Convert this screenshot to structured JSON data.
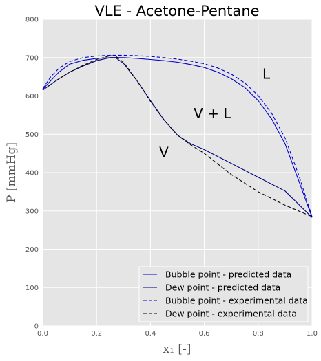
{
  "chart_data": {
    "type": "line",
    "title": "VLE - Acetone-Pentane",
    "xlabel": "x₁ [-]",
    "ylabel": "P [mmHg]",
    "xlim": [
      0,
      1
    ],
    "ylim": [
      0,
      800
    ],
    "xticks": [
      "0.0",
      "0.2",
      "0.4",
      "0.6",
      "0.8",
      "1.0"
    ],
    "yticks": [
      "0",
      "100",
      "200",
      "300",
      "400",
      "500",
      "600",
      "700",
      "800"
    ],
    "grid": true,
    "legend_position": "lower-right",
    "colors": {
      "background": "#e5e5e5",
      "grid": "#ffffff",
      "blue": "#0000cc",
      "black": "#000000"
    },
    "annotations": [
      {
        "text": "L",
        "x": 0.83,
        "y": 645
      },
      {
        "text": "V + L",
        "x": 0.63,
        "y": 542
      },
      {
        "text": "V",
        "x": 0.45,
        "y": 440
      }
    ],
    "series": [
      {
        "name": "Bubble point - predicted data",
        "color": "#0000cc",
        "dash": "solid",
        "x": [
          0.0,
          0.03,
          0.06,
          0.1,
          0.15,
          0.2,
          0.25,
          0.3,
          0.35,
          0.4,
          0.45,
          0.5,
          0.55,
          0.6,
          0.65,
          0.7,
          0.75,
          0.8,
          0.85,
          0.9,
          0.95,
          1.0
        ],
        "y": [
          617,
          640,
          662,
          683,
          693,
          698,
          700,
          700,
          698,
          695,
          692,
          688,
          682,
          674,
          662,
          645,
          622,
          588,
          540,
          475,
          380,
          283
        ]
      },
      {
        "name": "Dew point - predicted data",
        "color": "#000080",
        "dash": "solid",
        "x": [
          0.0,
          0.05,
          0.1,
          0.15,
          0.2,
          0.25,
          0.27,
          0.3,
          0.35,
          0.4,
          0.45,
          0.5,
          0.55,
          0.6,
          0.7,
          0.8,
          0.9,
          1.0
        ],
        "y": [
          615,
          640,
          662,
          678,
          692,
          700,
          700,
          685,
          640,
          588,
          538,
          498,
          475,
          460,
          424,
          388,
          352,
          283
        ]
      },
      {
        "name": "Bubble point - experimental data",
        "color": "#0000cc",
        "dash": "dashed",
        "x": [
          0.0,
          0.03,
          0.06,
          0.1,
          0.15,
          0.2,
          0.25,
          0.3,
          0.35,
          0.4,
          0.45,
          0.5,
          0.55,
          0.6,
          0.65,
          0.7,
          0.75,
          0.8,
          0.85,
          0.9,
          0.95,
          1.0
        ],
        "y": [
          619,
          650,
          672,
          690,
          700,
          704,
          706,
          706,
          705,
          703,
          700,
          696,
          691,
          684,
          673,
          657,
          634,
          601,
          555,
          490,
          395,
          285
        ]
      },
      {
        "name": "Dew point - experimental data",
        "color": "#000000",
        "dash": "dashed",
        "x": [
          0.0,
          0.05,
          0.1,
          0.15,
          0.2,
          0.25,
          0.27,
          0.3,
          0.35,
          0.4,
          0.45,
          0.5,
          0.55,
          0.6,
          0.7,
          0.8,
          0.9,
          1.0
        ],
        "y": [
          615,
          640,
          662,
          680,
          695,
          705,
          704,
          688,
          640,
          586,
          537,
          498,
          472,
          450,
          395,
          350,
          315,
          285
        ]
      }
    ]
  }
}
